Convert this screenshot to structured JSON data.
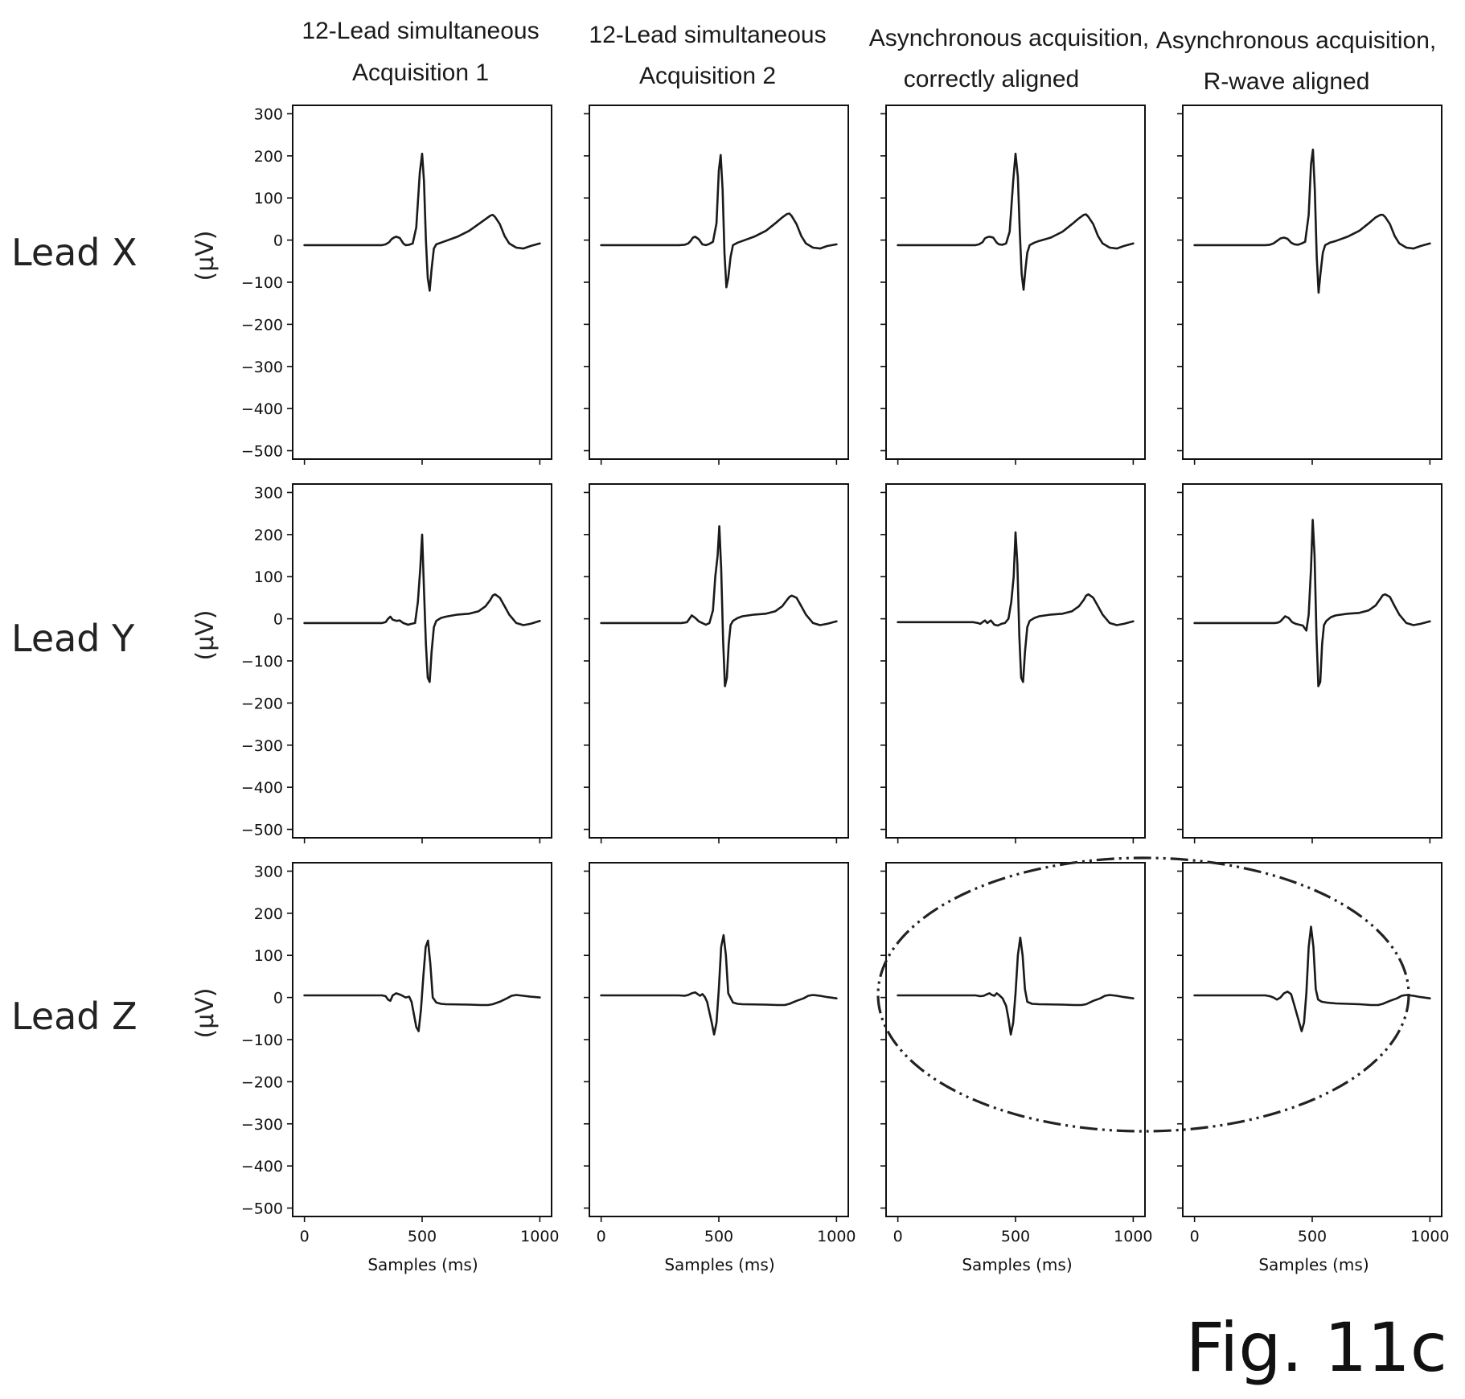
{
  "figure": {
    "fig_label": "Fig. 11c",
    "column_titles": [
      [
        "12-Lead simultaneous",
        "Acquisition 1"
      ],
      [
        "12-Lead simultaneous",
        "Acquisition 2"
      ],
      [
        "Asynchronous acquisition,",
        "correctly aligned"
      ],
      [
        "Asynchronous acquisition,",
        "R-wave aligned"
      ]
    ],
    "row_labels": [
      "Lead X",
      "Lead Y",
      "Lead Z"
    ],
    "y_axis_label": "(μV)",
    "x_axis_label": "Samples (ms)",
    "line_color": "#1a1a1a",
    "annotation": "dash-dot ellipse highlighting Lead Z of the two asynchronous acquisitions"
  },
  "chart_data": {
    "type": "line",
    "rows": 3,
    "cols": 4,
    "x_label": "Samples (ms)",
    "y_label": "(μV)",
    "xlim": [
      -50,
      1050
    ],
    "ylim": [
      -520,
      320
    ],
    "xticks": [
      0,
      500,
      1000
    ],
    "yticks": [
      300,
      200,
      100,
      0,
      -100,
      -200,
      -300,
      -400,
      -500
    ],
    "panels": [
      {
        "row": 0,
        "col": 0,
        "lead": "Lead X",
        "x": [
          0,
          330,
          345,
          360,
          370,
          380,
          390,
          405,
          420,
          430,
          445,
          460,
          475,
          490,
          500,
          508,
          516,
          524,
          532,
          540,
          550,
          560,
          580,
          600,
          650,
          700,
          740,
          770,
          790,
          800,
          810,
          830,
          850,
          870,
          900,
          930,
          960,
          1000
        ],
        "y": [
          -12,
          -12,
          -10,
          -5,
          2,
          6,
          8,
          5,
          -8,
          -12,
          -11,
          -8,
          30,
          160,
          205,
          140,
          0,
          -90,
          -120,
          -70,
          -20,
          -10,
          -6,
          -2,
          8,
          22,
          38,
          50,
          58,
          60,
          55,
          38,
          10,
          -8,
          -18,
          -20,
          -14,
          -8
        ]
      },
      {
        "row": 0,
        "col": 1,
        "lead": "Lead X",
        "x": [
          0,
          330,
          355,
          370,
          380,
          390,
          400,
          415,
          430,
          445,
          460,
          475,
          490,
          500,
          508,
          516,
          524,
          532,
          540,
          550,
          560,
          580,
          600,
          650,
          700,
          740,
          770,
          790,
          800,
          810,
          830,
          850,
          870,
          900,
          930,
          960,
          1000
        ],
        "y": [
          -12,
          -12,
          -11,
          -8,
          -2,
          6,
          8,
          2,
          -10,
          -12,
          -9,
          -4,
          40,
          165,
          202,
          120,
          -30,
          -112,
          -90,
          -40,
          -12,
          -6,
          -2,
          8,
          22,
          40,
          54,
          62,
          63,
          57,
          38,
          10,
          -8,
          -18,
          -20,
          -14,
          -10
        ]
      },
      {
        "row": 0,
        "col": 2,
        "lead": "Lead X",
        "x": [
          0,
          330,
          345,
          360,
          370,
          380,
          390,
          405,
          420,
          430,
          445,
          460,
          475,
          490,
          500,
          510,
          518,
          526,
          534,
          542,
          550,
          560,
          580,
          600,
          650,
          700,
          740,
          770,
          790,
          800,
          810,
          830,
          850,
          870,
          900,
          930,
          960,
          1000
        ],
        "y": [
          -12,
          -12,
          -10,
          -5,
          4,
          7,
          8,
          6,
          -6,
          -10,
          -11,
          -8,
          20,
          140,
          205,
          150,
          20,
          -80,
          -118,
          -70,
          -30,
          -12,
          -6,
          -2,
          6,
          20,
          38,
          52,
          60,
          61,
          55,
          38,
          10,
          -8,
          -18,
          -20,
          -14,
          -8
        ]
      },
      {
        "row": 0,
        "col": 3,
        "lead": "Lead X",
        "x": [
          0,
          300,
          320,
          335,
          350,
          365,
          380,
          395,
          410,
          425,
          440,
          455,
          470,
          485,
          495,
          503,
          511,
          519,
          527,
          535,
          545,
          555,
          575,
          600,
          650,
          700,
          740,
          770,
          790,
          800,
          810,
          830,
          850,
          870,
          900,
          930,
          960,
          1000
        ],
        "y": [
          -12,
          -12,
          -11,
          -8,
          -2,
          4,
          6,
          3,
          -6,
          -10,
          -11,
          -8,
          -4,
          60,
          180,
          215,
          120,
          -40,
          -125,
          -80,
          -30,
          -12,
          -6,
          -2,
          8,
          22,
          40,
          54,
          60,
          60,
          55,
          38,
          10,
          -8,
          -18,
          -20,
          -14,
          -8
        ]
      },
      {
        "row": 1,
        "col": 0,
        "lead": "Lead Y",
        "x": [
          0,
          330,
          345,
          355,
          365,
          375,
          390,
          405,
          420,
          440,
          455,
          470,
          482,
          492,
          500,
          508,
          516,
          524,
          532,
          540,
          550,
          560,
          580,
          600,
          650,
          700,
          740,
          770,
          790,
          800,
          810,
          830,
          850,
          870,
          900,
          930,
          960,
          1000
        ],
        "y": [
          -10,
          -10,
          -8,
          0,
          5,
          -2,
          -5,
          -4,
          -10,
          -14,
          -12,
          -10,
          40,
          120,
          200,
          70,
          -60,
          -140,
          -150,
          -80,
          -20,
          -5,
          2,
          5,
          10,
          12,
          18,
          30,
          45,
          55,
          58,
          50,
          30,
          10,
          -10,
          -15,
          -12,
          -5
        ]
      },
      {
        "row": 1,
        "col": 1,
        "lead": "Lead Y",
        "x": [
          0,
          340,
          355,
          365,
          375,
          385,
          400,
          415,
          430,
          445,
          460,
          475,
          485,
          495,
          502,
          510,
          518,
          526,
          534,
          542,
          550,
          560,
          580,
          600,
          650,
          700,
          740,
          770,
          790,
          800,
          810,
          830,
          850,
          870,
          900,
          930,
          960,
          1000
        ],
        "y": [
          -10,
          -10,
          -9,
          -8,
          0,
          8,
          2,
          -6,
          -10,
          -14,
          -10,
          20,
          100,
          150,
          220,
          120,
          -50,
          -160,
          -140,
          -60,
          -15,
          -5,
          2,
          6,
          10,
          12,
          18,
          30,
          45,
          52,
          55,
          50,
          30,
          10,
          -10,
          -15,
          -12,
          -6
        ]
      },
      {
        "row": 1,
        "col": 2,
        "lead": "Lead Y",
        "x": [
          0,
          320,
          340,
          350,
          360,
          370,
          380,
          395,
          410,
          425,
          440,
          455,
          470,
          482,
          492,
          500,
          508,
          516,
          524,
          532,
          540,
          550,
          560,
          580,
          600,
          650,
          700,
          740,
          770,
          790,
          800,
          810,
          830,
          850,
          870,
          900,
          930,
          960,
          1000
        ],
        "y": [
          -8,
          -8,
          -10,
          -12,
          -8,
          -4,
          -10,
          -4,
          -14,
          -16,
          -12,
          -10,
          0,
          40,
          100,
          205,
          130,
          -40,
          -140,
          -150,
          -80,
          -20,
          -5,
          2,
          6,
          10,
          12,
          18,
          30,
          45,
          55,
          58,
          50,
          30,
          10,
          -10,
          -15,
          -12,
          -6
        ]
      },
      {
        "row": 1,
        "col": 3,
        "lead": "Lead Y",
        "x": [
          0,
          340,
          355,
          365,
          375,
          385,
          400,
          415,
          430,
          445,
          460,
          475,
          485,
          495,
          502,
          510,
          518,
          526,
          534,
          542,
          550,
          560,
          580,
          600,
          650,
          700,
          740,
          770,
          790,
          800,
          810,
          830,
          850,
          870,
          900,
          930,
          960,
          1000
        ],
        "y": [
          -10,
          -10,
          -9,
          -6,
          0,
          6,
          2,
          -8,
          -12,
          -14,
          -16,
          -28,
          10,
          120,
          235,
          150,
          -40,
          -160,
          -150,
          -60,
          -15,
          -5,
          4,
          8,
          12,
          14,
          20,
          32,
          48,
          56,
          58,
          52,
          30,
          10,
          -10,
          -15,
          -12,
          -6
        ]
      },
      {
        "row": 2,
        "col": 0,
        "lead": "Lead Z",
        "x": [
          0,
          330,
          345,
          355,
          365,
          375,
          390,
          410,
          430,
          445,
          455,
          465,
          475,
          485,
          495,
          505,
          515,
          525,
          535,
          545,
          560,
          580,
          600,
          700,
          750,
          780,
          800,
          830,
          860,
          880,
          900,
          930,
          960,
          1000
        ],
        "y": [
          5,
          5,
          3,
          -5,
          -8,
          5,
          10,
          6,
          0,
          2,
          -10,
          -40,
          -70,
          -80,
          -30,
          50,
          120,
          135,
          80,
          0,
          -12,
          -15,
          -16,
          -17,
          -18,
          -18,
          -16,
          -10,
          -2,
          4,
          6,
          4,
          2,
          0
        ]
      },
      {
        "row": 2,
        "col": 1,
        "lead": "Lead Z",
        "x": [
          0,
          330,
          355,
          370,
          385,
          400,
          410,
          420,
          430,
          440,
          450,
          460,
          470,
          480,
          490,
          500,
          510,
          520,
          530,
          540,
          560,
          580,
          600,
          700,
          750,
          780,
          800,
          830,
          860,
          880,
          900,
          930,
          960,
          1000
        ],
        "y": [
          5,
          5,
          4,
          6,
          10,
          12,
          8,
          4,
          8,
          2,
          -10,
          -35,
          -60,
          -88,
          -60,
          20,
          120,
          148,
          100,
          10,
          -12,
          -15,
          -16,
          -17,
          -18,
          -18,
          -15,
          -8,
          -2,
          4,
          6,
          4,
          1,
          -2
        ]
      },
      {
        "row": 2,
        "col": 2,
        "lead": "Lead Z",
        "x": [
          0,
          330,
          350,
          365,
          380,
          390,
          400,
          410,
          420,
          430,
          445,
          460,
          470,
          480,
          490,
          500,
          510,
          520,
          530,
          540,
          550,
          570,
          600,
          700,
          750,
          780,
          800,
          830,
          860,
          880,
          900,
          930,
          960,
          1000
        ],
        "y": [
          5,
          5,
          3,
          4,
          8,
          10,
          6,
          4,
          10,
          6,
          -2,
          -20,
          -50,
          -88,
          -60,
          10,
          100,
          142,
          100,
          20,
          -10,
          -15,
          -16,
          -17,
          -18,
          -18,
          -16,
          -8,
          -2,
          4,
          6,
          4,
          1,
          -2
        ]
      },
      {
        "row": 2,
        "col": 3,
        "lead": "Lead Z",
        "x": [
          0,
          300,
          320,
          335,
          350,
          365,
          380,
          395,
          410,
          425,
          440,
          455,
          465,
          475,
          485,
          495,
          505,
          515,
          525,
          540,
          560,
          600,
          700,
          750,
          780,
          800,
          830,
          860,
          880,
          900,
          930,
          960,
          1000
        ],
        "y": [
          5,
          5,
          3,
          0,
          -5,
          0,
          10,
          14,
          8,
          -20,
          -50,
          -80,
          -60,
          10,
          120,
          168,
          120,
          20,
          -5,
          -10,
          -12,
          -14,
          -16,
          -18,
          -18,
          -15,
          -8,
          -2,
          4,
          6,
          4,
          1,
          -2
        ]
      }
    ]
  }
}
